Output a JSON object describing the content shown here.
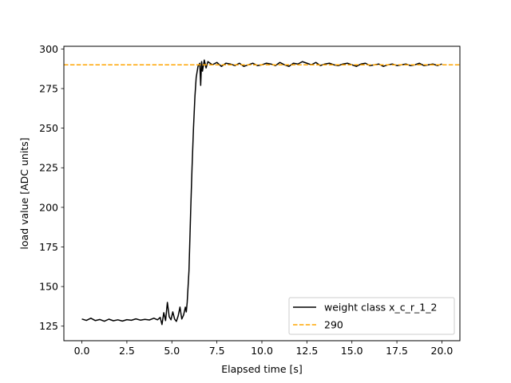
{
  "chart_data": {
    "type": "line",
    "title": "",
    "xlabel": "Elapsed time [s]",
    "ylabel": "load value [ADC units]",
    "xlim": [
      -1.0,
      21.0
    ],
    "ylim": [
      115.8,
      301.7
    ],
    "xticks": [
      0.0,
      2.5,
      5.0,
      7.5,
      10.0,
      12.5,
      15.0,
      17.5,
      20.0
    ],
    "xtick_labels": [
      "0.0",
      "2.5",
      "5.0",
      "7.5",
      "10.0",
      "12.5",
      "15.0",
      "17.5",
      "20.0"
    ],
    "yticks": [
      125,
      150,
      175,
      200,
      225,
      250,
      275,
      300
    ],
    "ytick_labels": [
      "125",
      "150",
      "175",
      "200",
      "225",
      "250",
      "275",
      "300"
    ],
    "grid": false,
    "legend_position": "lower-right",
    "series": [
      {
        "name": "weight class x_c_r_1_2",
        "color": "#000000",
        "style": "solid",
        "x": [
          0.0,
          0.25,
          0.5,
          0.75,
          1.0,
          1.25,
          1.5,
          1.75,
          2.0,
          2.25,
          2.5,
          2.75,
          3.0,
          3.25,
          3.5,
          3.75,
          4.0,
          4.2,
          4.35,
          4.45,
          4.55,
          4.65,
          4.75,
          4.85,
          4.95,
          5.05,
          5.15,
          5.25,
          5.35,
          5.45,
          5.55,
          5.65,
          5.75,
          5.8,
          5.85,
          5.95,
          6.05,
          6.12,
          6.2,
          6.28,
          6.35,
          6.45,
          6.55,
          6.6,
          6.65,
          6.7,
          6.8,
          6.9,
          7.0,
          7.25,
          7.5,
          7.75,
          8.0,
          8.25,
          8.5,
          8.75,
          9.0,
          9.25,
          9.5,
          9.75,
          10.0,
          10.25,
          10.5,
          10.75,
          11.0,
          11.25,
          11.5,
          11.75,
          12.0,
          12.25,
          12.5,
          12.75,
          13.0,
          13.25,
          13.5,
          13.75,
          14.0,
          14.25,
          14.5,
          14.75,
          15.0,
          15.25,
          15.5,
          15.75,
          16.0,
          16.25,
          16.5,
          16.75,
          17.0,
          17.25,
          17.5,
          17.75,
          18.0,
          18.25,
          18.5,
          18.75,
          19.0,
          19.25,
          19.5,
          19.75,
          20.0
        ],
        "y": [
          129.5,
          128.6,
          130.0,
          128.5,
          129.2,
          128.1,
          129.4,
          128.4,
          129.0,
          128.2,
          129.1,
          128.7,
          129.6,
          128.8,
          129.3,
          128.9,
          130.0,
          129.0,
          130.5,
          126.0,
          133.5,
          128.5,
          140.0,
          131.0,
          129.0,
          134.0,
          129.5,
          128.0,
          131.5,
          137.0,
          129.5,
          132.0,
          137.0,
          134.0,
          140.0,
          160.0,
          200.0,
          225.0,
          250.0,
          270.0,
          282.0,
          289.0,
          291.0,
          277.0,
          292.0,
          286.0,
          293.0,
          288.0,
          292.0,
          290.0,
          291.5,
          289.0,
          291.0,
          290.5,
          289.5,
          291.0,
          289.0,
          290.0,
          291.0,
          289.5,
          290.0,
          291.0,
          290.5,
          289.5,
          291.5,
          290.0,
          289.0,
          291.0,
          290.5,
          292.0,
          291.0,
          290.0,
          291.5,
          289.5,
          290.5,
          291.0,
          290.0,
          289.5,
          290.5,
          291.0,
          290.0,
          289.0,
          290.5,
          291.0,
          289.5,
          290.0,
          290.5,
          289.0,
          290.0,
          290.5,
          289.5,
          290.0,
          290.5,
          289.5,
          290.0,
          291.0,
          289.5,
          290.0,
          290.5,
          289.5,
          290.5
        ]
      },
      {
        "name": "290",
        "color": "#FFA500",
        "style": "dashed",
        "x": [
          -1.0,
          21.0
        ],
        "y": [
          290,
          290
        ]
      }
    ]
  }
}
